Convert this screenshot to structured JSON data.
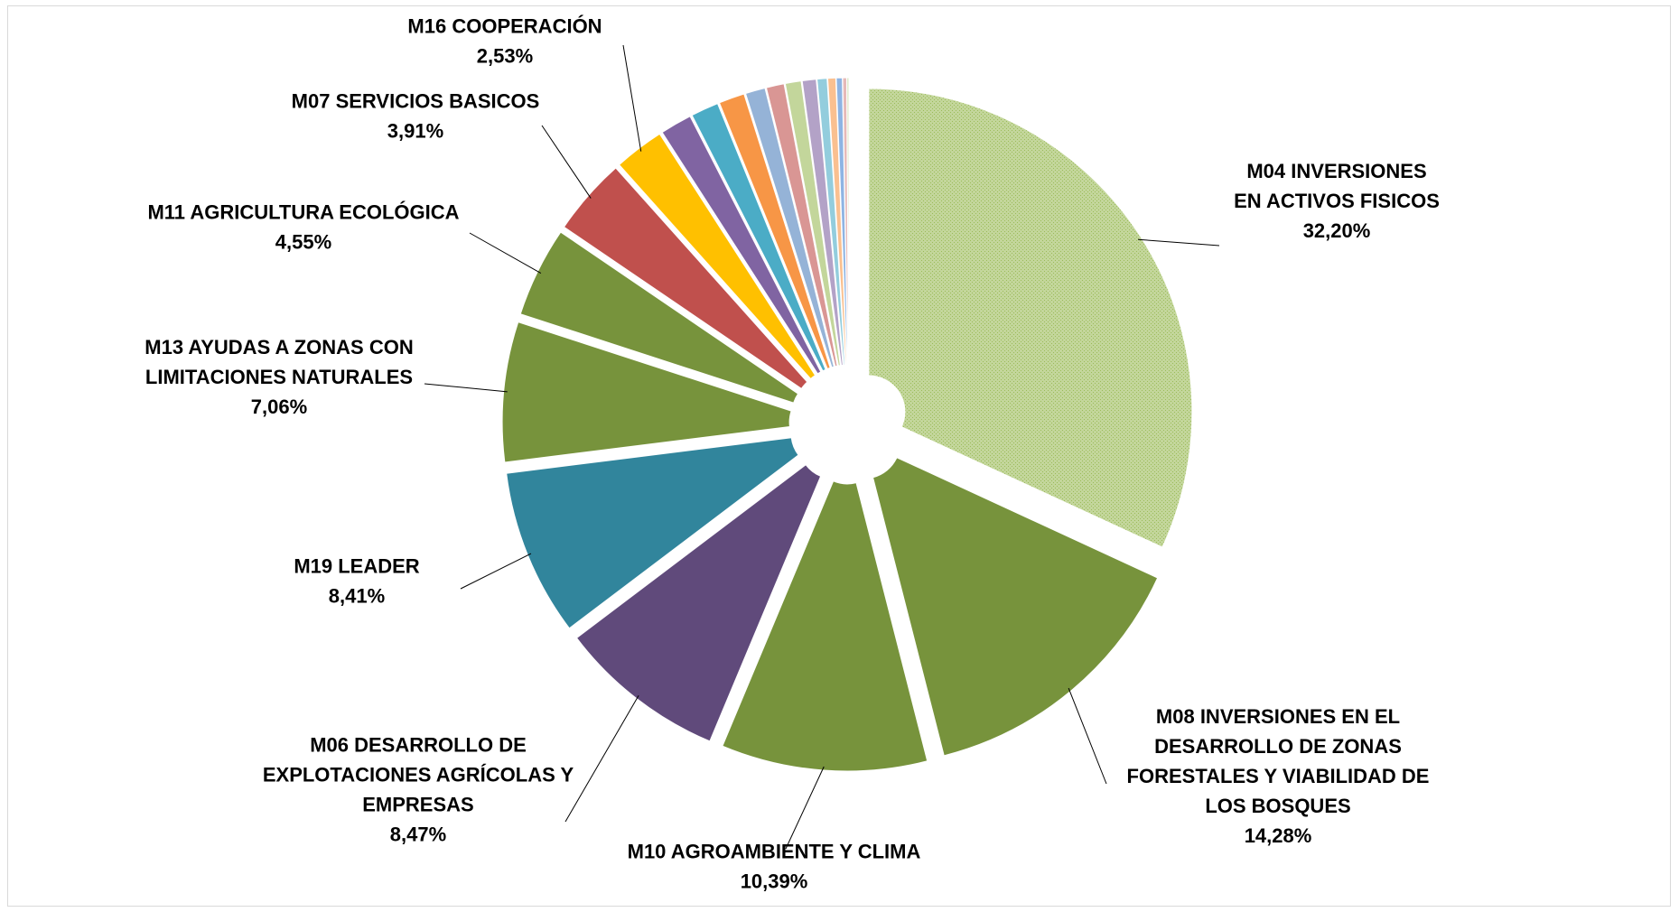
{
  "chart_data": {
    "type": "pie",
    "title": "",
    "legend": "none",
    "slices": [
      {
        "label_lines": [
          "M04 INVERSIONES",
          "EN ACTIVOS FISICOS"
        ],
        "value": 32.2,
        "value_text": "32,20%",
        "color": "#c3d69b",
        "pattern": "dotted",
        "exploded": true
      },
      {
        "label_lines": [
          "M08 INVERSIONES EN EL",
          "DESARROLLO DE ZONAS",
          "FORESTALES Y VIABILIDAD DE",
          "LOS BOSQUES"
        ],
        "value": 14.28,
        "value_text": "14,28%",
        "color": "#77933c",
        "exploded": true
      },
      {
        "label_lines": [
          "M10 AGROAMBIENTE Y CLIMA"
        ],
        "value": 10.39,
        "value_text": "10,39%",
        "color": "#77933c",
        "exploded": true
      },
      {
        "label_lines": [
          "M06 DESARROLLO DE",
          "EXPLOTACIONES AGRÍCOLAS Y",
          "EMPRESAS"
        ],
        "value": 8.47,
        "value_text": "8,47%",
        "color": "#604a7b",
        "exploded": true
      },
      {
        "label_lines": [
          "M19 LEADER"
        ],
        "value": 8.41,
        "value_text": "8,41%",
        "color": "#31859c",
        "exploded": true
      },
      {
        "label_lines": [
          "M13 AYUDAS A ZONAS CON",
          "LIMITACIONES NATURALES"
        ],
        "value": 7.06,
        "value_text": "7,06%",
        "color": "#77933c",
        "exploded": true
      },
      {
        "label_lines": [
          "M11 AGRICULTURA ECOLÓGICA"
        ],
        "value": 4.55,
        "value_text": "4,55%",
        "color": "#77933c",
        "exploded": true
      },
      {
        "label_lines": [
          "M07 SERVICIOS BASICOS"
        ],
        "value": 3.91,
        "value_text": "3,91%",
        "color": "#c0504d",
        "exploded": true
      },
      {
        "label_lines": [
          "M16 COOPERACIÓN"
        ],
        "value": 2.53,
        "value_text": "2,53%",
        "color": "#ffc000",
        "exploded": true
      },
      {
        "label_lines": [],
        "value": 1.6,
        "value_text": "",
        "color": "#8064a2",
        "exploded": true
      },
      {
        "label_lines": [],
        "value": 1.4,
        "value_text": "",
        "color": "#4bacc6",
        "exploded": true
      },
      {
        "label_lines": [],
        "value": 1.3,
        "value_text": "",
        "color": "#f79646",
        "exploded": true
      },
      {
        "label_lines": [],
        "value": 1.0,
        "value_text": "",
        "color": "#95b3d7",
        "exploded": true
      },
      {
        "label_lines": [],
        "value": 0.9,
        "value_text": "",
        "color": "#d99694",
        "exploded": true
      },
      {
        "label_lines": [],
        "value": 0.8,
        "value_text": "",
        "color": "#c3d69b",
        "exploded": true
      },
      {
        "label_lines": [],
        "value": 0.7,
        "value_text": "",
        "color": "#b3a2c7",
        "exploded": true
      },
      {
        "label_lines": [],
        "value": 0.5,
        "value_text": "",
        "color": "#93cddd",
        "exploded": true
      },
      {
        "label_lines": [],
        "value": 0.4,
        "value_text": "",
        "color": "#fac090",
        "exploded": true
      },
      {
        "label_lines": [],
        "value": 0.3,
        "value_text": "",
        "color": "#8eb4e3",
        "exploded": true
      },
      {
        "label_lines": [],
        "value": 0.2,
        "value_text": "",
        "color": "#e6b9b8",
        "exploded": true
      },
      {
        "label_lines": [],
        "value": 0.1,
        "value_text": "",
        "color": "#d7e4bd",
        "exploded": true
      }
    ]
  }
}
